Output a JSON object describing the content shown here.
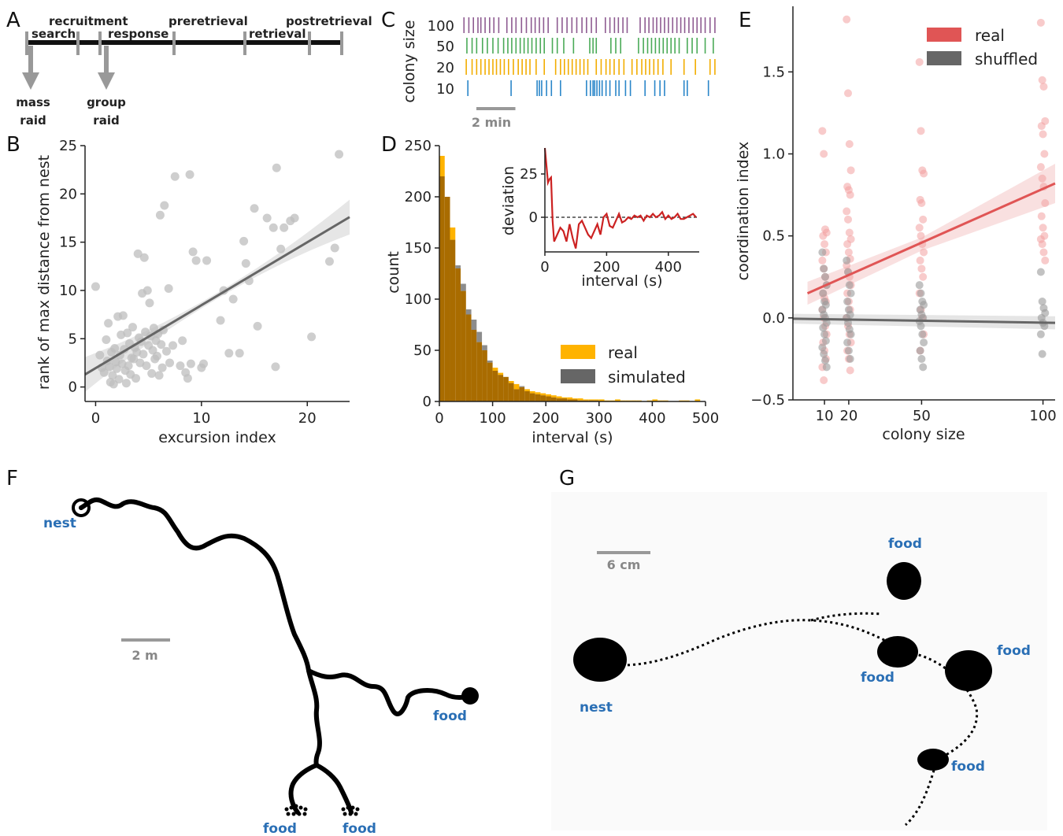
{
  "panels": {
    "A": {
      "letter": "A",
      "phases_top": [
        "recruitment",
        "preretrieval",
        "postretrieval"
      ],
      "phases_bottom": [
        "search",
        "response",
        "retrieval"
      ],
      "arrow_labels": [
        [
          "mass",
          "raid"
        ],
        [
          "group",
          "raid"
        ]
      ]
    },
    "B": {
      "letter": "B"
    },
    "C": {
      "letter": "C",
      "scale_label": "2 min"
    },
    "D": {
      "letter": "D"
    },
    "E": {
      "letter": "E"
    },
    "F": {
      "letter": "F",
      "nest_label": "nest",
      "food_label": "food",
      "scale_label": "2 m"
    },
    "G": {
      "letter": "G",
      "nest_label": "nest",
      "food_label": "food",
      "scale_label": "6 cm"
    }
  },
  "colors": {
    "purple": "#8e5b91",
    "green": "#4aaa57",
    "orange": "#f2ad00",
    "blue": "#2a86c9",
    "real": "#e05555",
    "shuffled": "#666666",
    "hist_real": "#ffb300",
    "hist_sim": "#8c8c8c",
    "overlap": "#a96c00",
    "inset_line": "#cc2222",
    "label_blue": "#2a6fb5"
  },
  "chart_data": [
    {
      "id": "B",
      "type": "scatter",
      "xlabel": "excursion index",
      "ylabel": "rank of max distance from nest",
      "xlim": [
        -1,
        24
      ],
      "ylim": [
        -1.5,
        25
      ],
      "xticks": [
        "0",
        "10",
        "20"
      ],
      "yticks": [
        "0",
        "5",
        "10",
        "15",
        "20",
        "25"
      ],
      "points": [
        [
          0,
          10.4
        ],
        [
          0.4,
          3.3
        ],
        [
          0.6,
          2
        ],
        [
          0.8,
          1.5
        ],
        [
          1,
          4.9
        ],
        [
          1.1,
          2.7
        ],
        [
          1.2,
          6.6
        ],
        [
          1.3,
          2.1
        ],
        [
          1.4,
          0.5
        ],
        [
          1.5,
          3.6
        ],
        [
          1.6,
          1.2
        ],
        [
          1.7,
          0.3
        ],
        [
          1.8,
          4
        ],
        [
          1.9,
          2.6
        ],
        [
          2,
          1.9
        ],
        [
          2.1,
          7.3
        ],
        [
          2.2,
          0.8
        ],
        [
          2.3,
          3.3
        ],
        [
          2.4,
          5.4
        ],
        [
          2.5,
          2.4
        ],
        [
          2.6,
          7.4
        ],
        [
          2.7,
          3.9
        ],
        [
          2.8,
          1.7
        ],
        [
          2.9,
          0.4
        ],
        [
          3,
          5.6
        ],
        [
          3.1,
          2.2
        ],
        [
          3.2,
          4.5
        ],
        [
          3.3,
          1.3
        ],
        [
          3.4,
          3
        ],
        [
          3.5,
          6.2
        ],
        [
          3.6,
          2.9
        ],
        [
          3.7,
          4.1
        ],
        [
          3.8,
          0.9
        ],
        [
          3.9,
          3.6
        ],
        [
          4,
          13.8
        ],
        [
          4.1,
          5.1
        ],
        [
          4.2,
          2.5
        ],
        [
          4.3,
          4.7
        ],
        [
          4.4,
          9.7
        ],
        [
          4.5,
          3.4
        ],
        [
          4.6,
          13.4
        ],
        [
          4.7,
          5.7
        ],
        [
          4.8,
          2.2
        ],
        [
          4.9,
          10
        ],
        [
          5,
          4.3
        ],
        [
          5.1,
          8.7
        ],
        [
          5.2,
          5.3
        ],
        [
          5.3,
          1.4
        ],
        [
          5.4,
          3.8
        ],
        [
          5.5,
          6.1
        ],
        [
          5.6,
          2.9
        ],
        [
          5.7,
          4.8
        ],
        [
          5.8,
          3.2
        ],
        [
          5.9,
          5.5
        ],
        [
          6,
          1.2
        ],
        [
          6.1,
          17.8
        ],
        [
          6.2,
          4.4
        ],
        [
          6.3,
          2
        ],
        [
          6.4,
          5.9
        ],
        [
          6.5,
          18.8
        ],
        [
          6.7,
          3.7
        ],
        [
          6.9,
          10.2
        ],
        [
          7,
          2.5
        ],
        [
          7.3,
          4.3
        ],
        [
          7.5,
          21.8
        ],
        [
          8,
          2.2
        ],
        [
          8.2,
          4.8
        ],
        [
          8.5,
          1.5
        ],
        [
          8.7,
          0.9
        ],
        [
          8.9,
          22
        ],
        [
          9,
          2.4
        ],
        [
          9.2,
          14
        ],
        [
          9.5,
          13.1
        ],
        [
          10,
          2
        ],
        [
          10.2,
          2.4
        ],
        [
          10.5,
          13.1
        ],
        [
          11.8,
          6.9
        ],
        [
          12.1,
          10
        ],
        [
          12.6,
          3.5
        ],
        [
          13,
          9.1
        ],
        [
          13.6,
          3.5
        ],
        [
          14,
          15.1
        ],
        [
          14.2,
          12.8
        ],
        [
          14.5,
          11
        ],
        [
          15,
          18.5
        ],
        [
          15.3,
          6.3
        ],
        [
          16.2,
          17.5
        ],
        [
          16.8,
          16.5
        ],
        [
          17,
          2.1
        ],
        [
          17.1,
          22.7
        ],
        [
          17.5,
          14.3
        ],
        [
          17.8,
          16.5
        ],
        [
          18.4,
          17.2
        ],
        [
          18.8,
          17.5
        ],
        [
          20.4,
          5.2
        ],
        [
          22.1,
          13
        ],
        [
          22.6,
          14.4
        ],
        [
          23,
          24.1
        ]
      ],
      "fit": {
        "x0": -1,
        "y0": 1.3,
        "x1": 24,
        "y1": 17.6
      },
      "band_half_width": [
        0.3,
        1.8
      ]
    },
    {
      "id": "C",
      "type": "scatter",
      "ylabel": "colony size",
      "rows": [
        "100",
        "50",
        "20",
        "10"
      ],
      "x_max_seconds": 780,
      "scale_bar_seconds": 120,
      "events": {
        "100": [
          3,
          18,
          32,
          46,
          55,
          68,
          82,
          95,
          110,
          135,
          150,
          163,
          180,
          195,
          210,
          222,
          235,
          248,
          262,
          290,
          305,
          320,
          335,
          350,
          366,
          380,
          395,
          410,
          438,
          452,
          466,
          478,
          492,
          505,
          545,
          560,
          572,
          585,
          596,
          608,
          620,
          632,
          645,
          658,
          670,
          682,
          695,
          708,
          720,
          732,
          745,
          760,
          775
        ],
        "50": [
          12,
          28,
          42,
          60,
          75,
          92,
          108,
          125,
          138,
          150,
          163,
          176,
          188,
          200,
          212,
          225,
          238,
          250,
          275,
          290,
          310,
          340,
          390,
          400,
          410,
          455,
          470,
          485,
          540,
          555,
          568,
          580,
          592,
          604,
          616,
          628,
          640,
          652,
          665,
          690,
          705,
          720,
          745,
          770
        ],
        "20": [
          10,
          28,
          42,
          55,
          68,
          80,
          92,
          103,
          115,
          127,
          140,
          155,
          170,
          182,
          194,
          206,
          225,
          250,
          285,
          300,
          312,
          324,
          336,
          348,
          360,
          372,
          384,
          410,
          425,
          440,
          452,
          465,
          480,
          495,
          520,
          535,
          550,
          562,
          574,
          587,
          600,
          615,
          640,
          680,
          715,
          760,
          775
        ],
        "10": [
          15,
          148,
          228,
          235,
          242,
          257,
          272,
          300,
          380,
          392,
          400,
          405,
          412,
          420,
          428,
          440,
          452,
          470,
          480,
          500,
          515,
          560,
          590,
          606,
          620,
          680,
          690,
          755
        ]
      }
    },
    {
      "id": "D",
      "type": "bar",
      "xlabel": "interval (s)",
      "ylabel": "count",
      "xlim": [
        0,
        500
      ],
      "ylim": [
        0,
        250
      ],
      "xticks": [
        "0",
        "100",
        "200",
        "300",
        "400",
        "500"
      ],
      "yticks": [
        "0",
        "50",
        "100",
        "150",
        "200",
        "250"
      ],
      "bin_width": 10,
      "series": [
        {
          "name": "real",
          "values": [
            240,
            200,
            170,
            130,
            108,
            85,
            70,
            58,
            50,
            38,
            33,
            28,
            24,
            20,
            17,
            14,
            12,
            10,
            9,
            8,
            7,
            6,
            5,
            4,
            4,
            3,
            3,
            2,
            2,
            2,
            2,
            1,
            1,
            2,
            1,
            1,
            1,
            1,
            0,
            1,
            2,
            1,
            1,
            0,
            0,
            1,
            1,
            0,
            2,
            0
          ]
        },
        {
          "name": "simulated",
          "values": [
            220,
            200,
            158,
            133,
            115,
            90,
            80,
            68,
            55,
            40,
            30,
            26,
            24,
            18,
            12,
            15,
            10,
            8,
            7,
            6,
            5,
            4,
            3,
            3,
            2,
            2,
            1,
            1,
            1,
            1,
            0,
            0,
            0,
            0,
            0,
            0,
            0,
            0,
            0,
            0,
            0,
            0,
            0,
            0,
            0,
            0,
            0,
            0,
            0,
            0
          ]
        }
      ],
      "inset": {
        "xlabel": "interval (s)",
        "ylabel": "deviation",
        "xlim": [
          0,
          500
        ],
        "ylim": [
          -20,
          40
        ],
        "xticks": [
          "0",
          "200",
          "400"
        ],
        "yticks": [
          "0",
          "25"
        ],
        "x": [
          0,
          5,
          10,
          15,
          20,
          25,
          30,
          40,
          50,
          60,
          70,
          80,
          90,
          100,
          110,
          120,
          130,
          140,
          150,
          160,
          170,
          180,
          190,
          200,
          210,
          220,
          230,
          240,
          250,
          260,
          270,
          280,
          290,
          300,
          310,
          320,
          330,
          340,
          350,
          360,
          370,
          380,
          390,
          400,
          410,
          420,
          430,
          440,
          450,
          460,
          470,
          480,
          490
        ],
        "y": [
          40,
          30,
          20,
          22,
          23,
          -2,
          -14,
          -10,
          -6,
          -8,
          -14,
          -4,
          -12,
          -18,
          -4,
          -2,
          -6,
          -10,
          -12,
          -8,
          -4,
          -10,
          0,
          2,
          -5,
          -6,
          -2,
          2,
          -3,
          -2,
          0,
          -1,
          1,
          0,
          1,
          -2,
          1,
          0,
          2,
          0,
          1,
          3,
          -1,
          1,
          -1,
          0,
          2,
          -1,
          -1,
          0,
          1,
          2,
          0
        ]
      }
    },
    {
      "id": "E",
      "type": "scatter",
      "xlabel": "colony size",
      "ylabel": "coordination index",
      "xlim": [
        -3,
        105
      ],
      "ylim": [
        -0.5,
        1.9
      ],
      "xticks": [
        "10",
        "20",
        "50",
        "100"
      ],
      "yticks": [
        "−0.5",
        "0.0",
        "0.5",
        "1.0",
        "1.5"
      ],
      "series": [
        {
          "name": "real",
          "fit": [
            [
              3,
              0.15
            ],
            [
              105,
              0.82
            ]
          ],
          "points": {
            "10": [
              1.14,
              1.0,
              0.54,
              0.52,
              0.5,
              0.45,
              0.4,
              0.35,
              0.3,
              0.25,
              0.2,
              0.15,
              0.12,
              0.1,
              0.05,
              0.0,
              -0.05,
              -0.1,
              -0.15,
              -0.2,
              -0.25,
              -0.3,
              -0.38
            ],
            "20": [
              1.82,
              1.37,
              1.06,
              0.9,
              0.8,
              0.78,
              0.75,
              0.65,
              0.6,
              0.52,
              0.48,
              0.45,
              0.4,
              0.36,
              0.32,
              0.28,
              0.25,
              0.2,
              0.15,
              0.1,
              0.05,
              0.0,
              -0.05,
              -0.1,
              -0.15,
              -0.2,
              -0.25,
              -0.32
            ],
            "50": [
              1.56,
              1.14,
              0.9,
              0.88,
              0.72,
              0.7,
              0.6,
              0.55,
              0.5,
              0.45,
              0.4,
              0.35,
              0.3,
              0.25,
              0.15,
              0.05,
              0.0,
              -0.1,
              -0.2
            ],
            "100": [
              1.8,
              1.45,
              1.41,
              1.2,
              1.17,
              1.12,
              1.0,
              0.92,
              0.85,
              0.8,
              0.7,
              0.62,
              0.55,
              0.5,
              0.48,
              0.45,
              0.4,
              0.35
            ]
          }
        },
        {
          "name": "shuffled",
          "fit": [
            [
              -3,
              -0.005
            ],
            [
              105,
              -0.03
            ]
          ],
          "points": {
            "10": [
              0.4,
              0.3,
              0.25,
              0.2,
              0.15,
              0.1,
              0.08,
              0.05,
              0.02,
              0.0,
              -0.03,
              -0.06,
              -0.1,
              -0.14,
              -0.18,
              -0.22,
              -0.26,
              -0.3
            ],
            "20": [
              0.35,
              0.28,
              0.2,
              0.15,
              0.1,
              0.05,
              0.02,
              0.0,
              -0.03,
              -0.07,
              -0.1,
              -0.15,
              -0.2,
              -0.25
            ],
            "50": [
              0.2,
              0.15,
              0.1,
              0.08,
              0.05,
              0.02,
              0.0,
              -0.02,
              -0.05,
              -0.1,
              -0.15,
              -0.2,
              -0.25,
              -0.3
            ],
            "100": [
              0.28,
              0.1,
              0.06,
              0.03,
              0.0,
              -0.03,
              -0.05,
              -0.1,
              -0.22
            ]
          }
        }
      ]
    }
  ]
}
